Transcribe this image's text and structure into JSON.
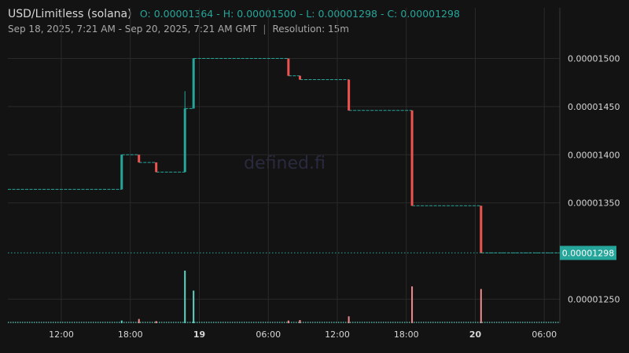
{
  "header": {
    "symbol": "USD/Limitless (solana)",
    "ohlc": "O: 0.00001364 - H: 0.00001500 - L: 0.00001298 - C: 0.00001298",
    "range": "Sep 18, 2025, 7:21 AM - Sep 20, 2025, 7:21 AM GMT",
    "separator": "|",
    "resolution": "Resolution: 15m"
  },
  "watermark": "defined.fi",
  "colors": {
    "background": "#131313",
    "up": "#26a69a",
    "down": "#ef5350",
    "grid": "#2a2a2a",
    "axis_text": "#d6d6d6",
    "volume_up": "#5fd4c4",
    "volume_down": "#f08a8c"
  },
  "chart_data": {
    "type": "candlestick",
    "ylim": [
      1.225e-05,
      1.52e-05
    ],
    "y_ticks": [
      1.5e-05,
      1.45e-05,
      1.4e-05,
      1.35e-05,
      1.25e-05
    ],
    "y_tick_labels": [
      "0.00001500",
      "0.00001450",
      "0.00001400",
      "0.00001350",
      "0.00001250"
    ],
    "last_price": 1.298e-05,
    "last_price_label": "0.00001298",
    "x_axis": {
      "start": "2025-09-18 07:21",
      "end": "2025-09-20 07:21",
      "ticks": [
        {
          "time": "2025-09-18 12:00",
          "label": "12:00",
          "bold": false
        },
        {
          "time": "2025-09-18 18:00",
          "label": "18:00",
          "bold": false
        },
        {
          "time": "2025-09-19 00:00",
          "label": "19",
          "bold": true
        },
        {
          "time": "2025-09-19 06:00",
          "label": "06:00",
          "bold": false
        },
        {
          "time": "2025-09-19 12:00",
          "label": "12:00",
          "bold": false
        },
        {
          "time": "2025-09-19 18:00",
          "label": "18:00",
          "bold": false
        },
        {
          "time": "2025-09-20 00:00",
          "label": "20",
          "bold": true
        },
        {
          "time": "2025-09-20 06:00",
          "label": "06:00",
          "bold": false
        }
      ]
    },
    "candles": [
      {
        "time": "2025-09-18 17:15",
        "open": 1.364e-05,
        "high": 1.4e-05,
        "low": 1.364e-05,
        "close": 1.4e-05
      },
      {
        "time": "2025-09-18 18:45",
        "open": 1.4e-05,
        "high": 1.4e-05,
        "low": 1.392e-05,
        "close": 1.392e-05
      },
      {
        "time": "2025-09-18 20:15",
        "open": 1.392e-05,
        "high": 1.392e-05,
        "low": 1.382e-05,
        "close": 1.382e-05
      },
      {
        "time": "2025-09-18 22:45",
        "open": 1.382e-05,
        "high": 1.466e-05,
        "low": 1.382e-05,
        "close": 1.448e-05
      },
      {
        "time": "2025-09-18 23:30",
        "open": 1.448e-05,
        "high": 1.5e-05,
        "low": 1.448e-05,
        "close": 1.5e-05
      },
      {
        "time": "2025-09-19 07:45",
        "open": 1.5e-05,
        "high": 1.5e-05,
        "low": 1.482e-05,
        "close": 1.482e-05
      },
      {
        "time": "2025-09-19 08:45",
        "open": 1.482e-05,
        "high": 1.482e-05,
        "low": 1.478e-05,
        "close": 1.478e-05
      },
      {
        "time": "2025-09-19 13:00",
        "open": 1.478e-05,
        "high": 1.478e-05,
        "low": 1.446e-05,
        "close": 1.446e-05
      },
      {
        "time": "2025-09-19 18:30",
        "open": 1.446e-05,
        "high": 1.446e-05,
        "low": 1.347e-05,
        "close": 1.347e-05
      },
      {
        "time": "2025-09-20 00:30",
        "open": 1.347e-05,
        "high": 1.347e-05,
        "low": 1.298e-05,
        "close": 1.298e-05
      }
    ],
    "volume_spikes": [
      {
        "time": "2025-09-18 17:15",
        "rel": 0.05,
        "dir": "up"
      },
      {
        "time": "2025-09-18 18:45",
        "rel": 0.08,
        "dir": "down"
      },
      {
        "time": "2025-09-18 20:15",
        "rel": 0.04,
        "dir": "down"
      },
      {
        "time": "2025-09-18 22:45",
        "rel": 1.0,
        "dir": "up"
      },
      {
        "time": "2025-09-18 23:30",
        "rel": 0.62,
        "dir": "up"
      },
      {
        "time": "2025-09-19 07:45",
        "rel": 0.05,
        "dir": "down"
      },
      {
        "time": "2025-09-19 08:45",
        "rel": 0.06,
        "dir": "down"
      },
      {
        "time": "2025-09-19 13:00",
        "rel": 0.13,
        "dir": "down"
      },
      {
        "time": "2025-09-19 18:30",
        "rel": 0.7,
        "dir": "down"
      },
      {
        "time": "2025-09-20 00:30",
        "rel": 0.65,
        "dir": "down"
      }
    ]
  }
}
